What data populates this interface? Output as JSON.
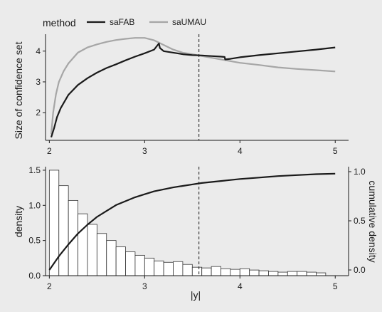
{
  "legend": {
    "title": "method",
    "entries": [
      {
        "name": "saFAB",
        "color": "#1a1a1a"
      },
      {
        "name": "saUMAU",
        "color": "#a6a6a6"
      }
    ]
  },
  "chart_data": [
    {
      "type": "line",
      "title": "",
      "xlabel": "",
      "ylabel": "Size of confidence set",
      "xlim": [
        1.96,
        5.14
      ],
      "ylim": [
        1.1,
        4.55
      ],
      "xticks": [
        2,
        3,
        4,
        5
      ],
      "yticks": [
        2,
        3,
        4
      ],
      "grid": false,
      "vline_x": 3.57,
      "series": [
        {
          "name": "saFAB",
          "color": "#1a1a1a",
          "points": [
            [
              2.02,
              1.2
            ],
            [
              2.05,
              1.5
            ],
            [
              2.08,
              1.85
            ],
            [
              2.12,
              2.15
            ],
            [
              2.2,
              2.58
            ],
            [
              2.3,
              2.9
            ],
            [
              2.4,
              3.12
            ],
            [
              2.5,
              3.3
            ],
            [
              2.6,
              3.45
            ],
            [
              2.7,
              3.57
            ],
            [
              2.8,
              3.7
            ],
            [
              2.9,
              3.82
            ],
            [
              3.0,
              3.93
            ],
            [
              3.1,
              4.05
            ],
            [
              3.15,
              4.25
            ],
            [
              3.16,
              4.1
            ],
            [
              3.2,
              4.0
            ],
            [
              3.3,
              3.95
            ],
            [
              3.4,
              3.9
            ],
            [
              3.5,
              3.87
            ],
            [
              3.6,
              3.86
            ],
            [
              3.7,
              3.84
            ],
            [
              3.8,
              3.82
            ],
            [
              3.84,
              3.81
            ],
            [
              3.845,
              3.73
            ],
            [
              3.9,
              3.75
            ],
            [
              4.0,
              3.8
            ],
            [
              4.2,
              3.87
            ],
            [
              4.4,
              3.93
            ],
            [
              4.6,
              3.99
            ],
            [
              4.8,
              4.05
            ],
            [
              5.0,
              4.12
            ]
          ]
        },
        {
          "name": "saUMAU",
          "color": "#a6a6a6",
          "points": [
            [
              2.02,
              1.3
            ],
            [
              2.04,
              2.0
            ],
            [
              2.07,
              2.6
            ],
            [
              2.1,
              3.0
            ],
            [
              2.15,
              3.35
            ],
            [
              2.2,
              3.6
            ],
            [
              2.3,
              3.95
            ],
            [
              2.4,
              4.12
            ],
            [
              2.5,
              4.22
            ],
            [
              2.6,
              4.3
            ],
            [
              2.7,
              4.36
            ],
            [
              2.8,
              4.4
            ],
            [
              2.9,
              4.43
            ],
            [
              3.0,
              4.43
            ],
            [
              3.1,
              4.35
            ],
            [
              3.2,
              4.2
            ],
            [
              3.3,
              4.05
            ],
            [
              3.4,
              3.95
            ],
            [
              3.5,
              3.9
            ],
            [
              3.6,
              3.84
            ],
            [
              3.8,
              3.73
            ],
            [
              4.0,
              3.62
            ],
            [
              4.2,
              3.55
            ],
            [
              4.4,
              3.47
            ],
            [
              4.6,
              3.42
            ],
            [
              4.8,
              3.38
            ],
            [
              5.0,
              3.34
            ]
          ]
        }
      ]
    },
    {
      "type": "bar",
      "title": "",
      "xlabel": "|y|",
      "ylabel": "density",
      "ylabel_right": "cumulative density",
      "xlim": [
        1.96,
        5.14
      ],
      "ylim": [
        0,
        1.55
      ],
      "ylim_right": [
        0,
        1.0
      ],
      "xticks": [
        2,
        3,
        4,
        5
      ],
      "yticks": [
        0.0,
        0.5,
        1.0,
        1.5
      ],
      "yticks_right": [
        0.0,
        0.5,
        1.0
      ],
      "grid": false,
      "vline_x": 3.57,
      "bin_start": 2.0,
      "bin_width": 0.1,
      "values": [
        1.5,
        1.28,
        1.07,
        0.88,
        0.73,
        0.6,
        0.5,
        0.41,
        0.34,
        0.29,
        0.25,
        0.21,
        0.19,
        0.2,
        0.16,
        0.12,
        0.11,
        0.13,
        0.1,
        0.09,
        0.1,
        0.08,
        0.07,
        0.06,
        0.05,
        0.06,
        0.06,
        0.05,
        0.04
      ],
      "cumulative": {
        "name": "cumulative density",
        "color": "#1a1a1a",
        "points": [
          [
            2.0,
            0.0
          ],
          [
            2.1,
            0.14
          ],
          [
            2.2,
            0.26
          ],
          [
            2.3,
            0.37
          ],
          [
            2.4,
            0.46
          ],
          [
            2.5,
            0.54
          ],
          [
            2.6,
            0.6
          ],
          [
            2.7,
            0.66
          ],
          [
            2.8,
            0.7
          ],
          [
            2.9,
            0.74
          ],
          [
            3.0,
            0.77
          ],
          [
            3.1,
            0.8
          ],
          [
            3.2,
            0.82
          ],
          [
            3.3,
            0.84
          ],
          [
            3.4,
            0.855
          ],
          [
            3.5,
            0.87
          ],
          [
            3.6,
            0.885
          ],
          [
            3.7,
            0.895
          ],
          [
            3.8,
            0.905
          ],
          [
            3.9,
            0.915
          ],
          [
            4.0,
            0.925
          ],
          [
            4.2,
            0.94
          ],
          [
            4.4,
            0.955
          ],
          [
            4.6,
            0.965
          ],
          [
            4.8,
            0.975
          ],
          [
            5.0,
            0.98
          ]
        ]
      }
    }
  ]
}
